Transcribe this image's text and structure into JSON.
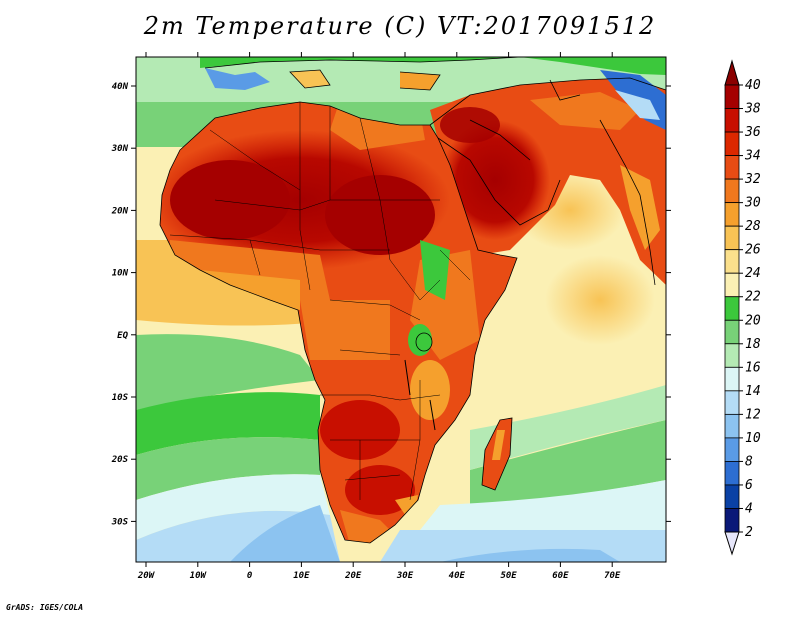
{
  "title": "2m Temperature (C) VT:2017091512",
  "credit": "GrADS: IGES/COLA",
  "map": {
    "lon_range": [
      -23,
      79
    ],
    "lat_range": [
      -37,
      45
    ],
    "x_ticks": [
      "20W",
      "10W",
      "0",
      "10E",
      "20E",
      "30E",
      "40E",
      "50E",
      "60E",
      "70E"
    ],
    "y_ticks": [
      "40N",
      "30N",
      "20N",
      "10N",
      "EQ",
      "10S",
      "20S",
      "30S"
    ]
  },
  "colorbar": {
    "labels": [
      "40",
      "38",
      "36",
      "34",
      "32",
      "30",
      "28",
      "26",
      "24",
      "22",
      "20",
      "18",
      "16",
      "14",
      "12",
      "10",
      "8",
      "6",
      "4",
      "2"
    ],
    "colors": [
      "#a50000",
      "#c80f00",
      "#dc2800",
      "#e84c14",
      "#f0781e",
      "#f5a02d",
      "#f8c355",
      "#fbe08c",
      "#fbf0b4",
      "#3cc83c",
      "#78d278",
      "#b4eab4",
      "#dcf6f6",
      "#b4dcf6",
      "#8cc3f0",
      "#5a9be6",
      "#2d6ed2",
      "#0a41a5",
      "#0a1978"
    ]
  }
}
